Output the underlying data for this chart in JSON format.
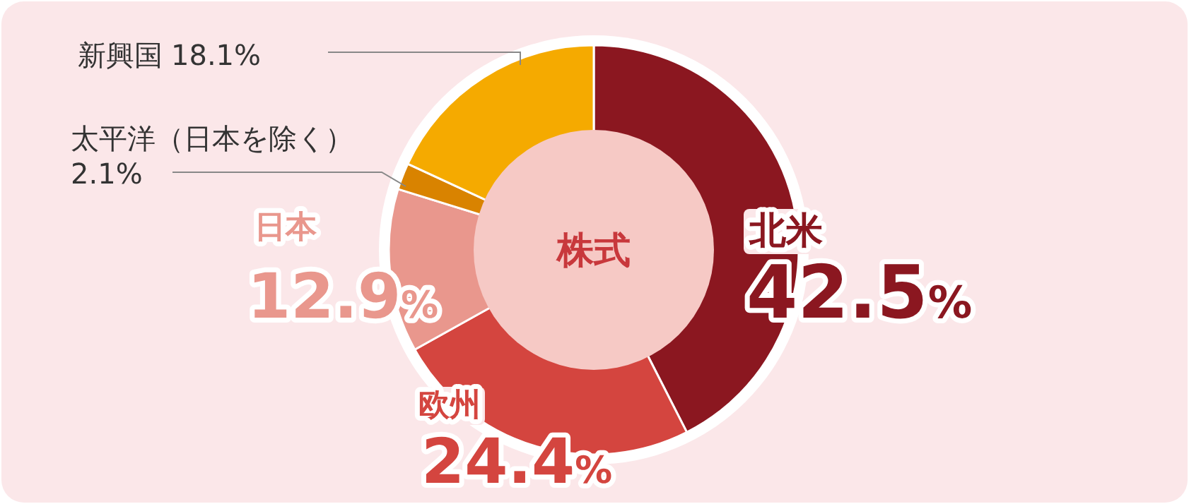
{
  "chart_data": {
    "type": "donut",
    "title": "株式",
    "categories": [
      "北米",
      "欧州",
      "日本",
      "太平洋（日本を除く）",
      "新興国"
    ],
    "values": [
      42.5,
      24.4,
      12.9,
      2.1,
      18.1
    ],
    "colors": [
      "#8b1720",
      "#d4453f",
      "#e9978d",
      "#d98300",
      "#f5aa00"
    ],
    "value_labels": [
      "42.5%",
      "24.4%",
      "12.9%",
      "2.1%",
      "18.1%"
    ]
  }
}
